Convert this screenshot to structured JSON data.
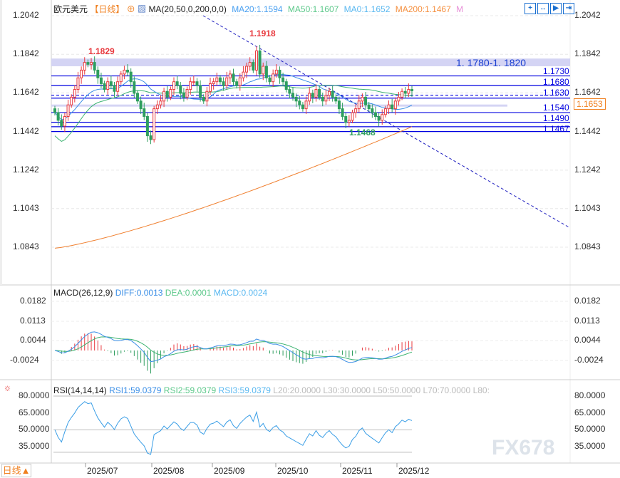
{
  "header": {
    "symbol": "欧元美元",
    "period": "【日线】",
    "indicator": "MA(20,50,0,200,0,0)",
    "ma20": "MA20:1.1594",
    "ma50": "MA50:1.1607",
    "ma0": "MA0:1.1652",
    "ma200": "MA200:1.1467",
    "more": "M",
    "toolbar": [
      "crosshair",
      "zoom-range",
      "play",
      "exit"
    ]
  },
  "price_axis": [
    "1.2042",
    "1.1842",
    "1.1642",
    "1.1442",
    "1.1242",
    "1.1043",
    "1.0843"
  ],
  "current_price": "1.1653",
  "zone_label": "1. 1780-1. 1820",
  "levels": [
    "1.1730",
    "1.1680",
    "1.1630",
    "1.1540",
    "1.1490",
    "1.1467"
  ],
  "annotations": {
    "high1": "1.1829",
    "high2": "1.1918",
    "low1": "1.1468"
  },
  "macd": {
    "title": "MACD(26,12,9)",
    "diff": "DIFF:0.0013",
    "dea": "DEA:0.0001",
    "macd": "MACD:0.0024",
    "axis": [
      "0.0182",
      "0.0113",
      "0.0044",
      "-0.0024"
    ]
  },
  "rsi": {
    "title": "RSI(14,14,14)",
    "rsi1": "RSI1:59.0379",
    "rsi2": "RSI2:59.0379",
    "rsi3": "RSI3:59.0379",
    "l20": "L20:20.0000",
    "l30": "L30:30.0000",
    "l50": "L50:50.0000",
    "l70": "L70:70.0000",
    "l80": "L80:",
    "axis": [
      "80.0000",
      "65.0000",
      "50.0000",
      "35.0000"
    ]
  },
  "dates": [
    "2025/07",
    "2025/08",
    "2025/09",
    "2025/10",
    "2025/11",
    "2025/12"
  ],
  "period_button": "日线▲",
  "watermark": "FX678",
  "colors": {
    "up": "#e8393e",
    "down": "#2e9e5e",
    "ma20": "#3a8ee6",
    "ma50": "#3cb371",
    "ma200": "#f08030",
    "level": "#0000e0"
  },
  "chart_data": {
    "type": "candlestick",
    "ma200_range": [
      1.0838,
      1.1467
    ],
    "closes": [
      1.154,
      1.15,
      1.147,
      1.152,
      1.158,
      1.162,
      1.166,
      1.172,
      1.176,
      1.18,
      1.179,
      1.18,
      1.176,
      1.172,
      1.169,
      1.166,
      1.17,
      1.168,
      1.165,
      1.17,
      1.174,
      1.176,
      1.175,
      1.17,
      1.164,
      1.16,
      1.156,
      1.152,
      1.142,
      1.14,
      1.156,
      1.158,
      1.16,
      1.165,
      1.162,
      1.166,
      1.17,
      1.168,
      1.164,
      1.162,
      1.166,
      1.17,
      1.17,
      1.168,
      1.162,
      1.16,
      1.165,
      1.169,
      1.17,
      1.172,
      1.17,
      1.168,
      1.172,
      1.174,
      1.17,
      1.168,
      1.172,
      1.175,
      1.178,
      1.18,
      1.176,
      1.186,
      1.174,
      1.178,
      1.172,
      1.17,
      1.174,
      1.176,
      1.172,
      1.17,
      1.166,
      1.164,
      1.162,
      1.16,
      1.158,
      1.156,
      1.16,
      1.164,
      1.162,
      1.166,
      1.162,
      1.16,
      1.163,
      1.165,
      1.162,
      1.16,
      1.156,
      1.152,
      1.149,
      1.15,
      1.154,
      1.156,
      1.16,
      1.162,
      1.158,
      1.156,
      1.154,
      1.152,
      1.15,
      1.153,
      1.156,
      1.158,
      1.156,
      1.16,
      1.162,
      1.165,
      1.164,
      1.166,
      1.1653
    ]
  }
}
